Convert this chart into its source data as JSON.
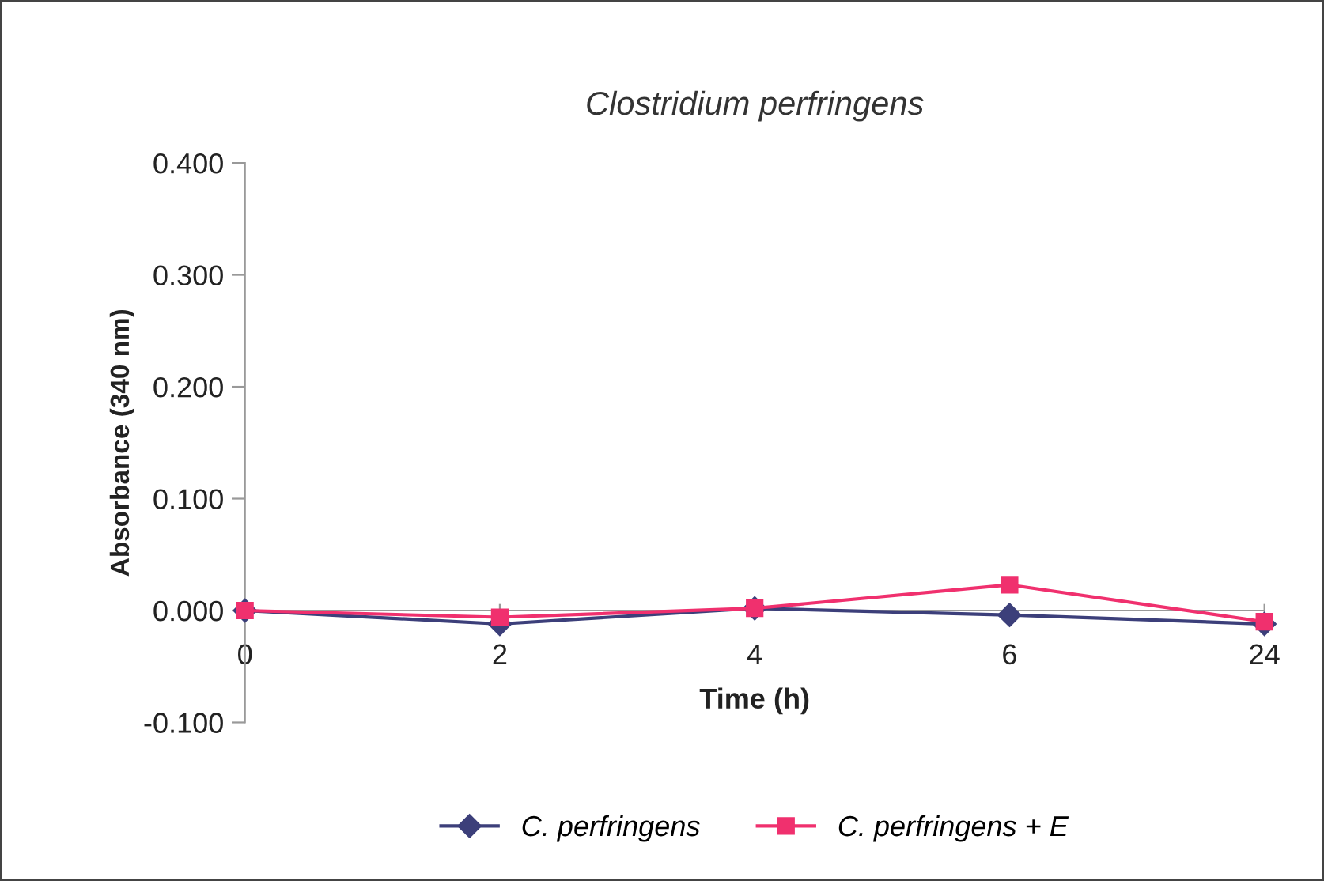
{
  "chart_data": {
    "type": "line",
    "title": "Clostridium perfringens",
    "xlabel": "Time (h)",
    "ylabel": "Absorbance (340 nm)",
    "categories": [
      "0",
      "2",
      "4",
      "6",
      "24"
    ],
    "series": [
      {
        "name": "C. perfringens",
        "color": "#3c3f7a",
        "marker": "diamond",
        "values": [
          0.0,
          -0.012,
          0.002,
          -0.004,
          -0.012
        ]
      },
      {
        "name": "C. perfringens + E",
        "color": "#f0306e",
        "marker": "square",
        "values": [
          0.0,
          -0.006,
          0.002,
          0.023,
          -0.01
        ]
      }
    ],
    "ylim": [
      -0.1,
      0.4
    ],
    "yticks": [
      {
        "value": -0.1,
        "label": "-0.100"
      },
      {
        "value": 0,
        "label": "0.000"
      },
      {
        "value": 0.1,
        "label": "0.100"
      },
      {
        "value": 0.2,
        "label": "0.200"
      },
      {
        "value": 0.3,
        "label": "0.300"
      },
      {
        "value": 0.4,
        "label": "0.400"
      }
    ],
    "grid": false,
    "legend": "bottom",
    "line_style": "solid"
  }
}
